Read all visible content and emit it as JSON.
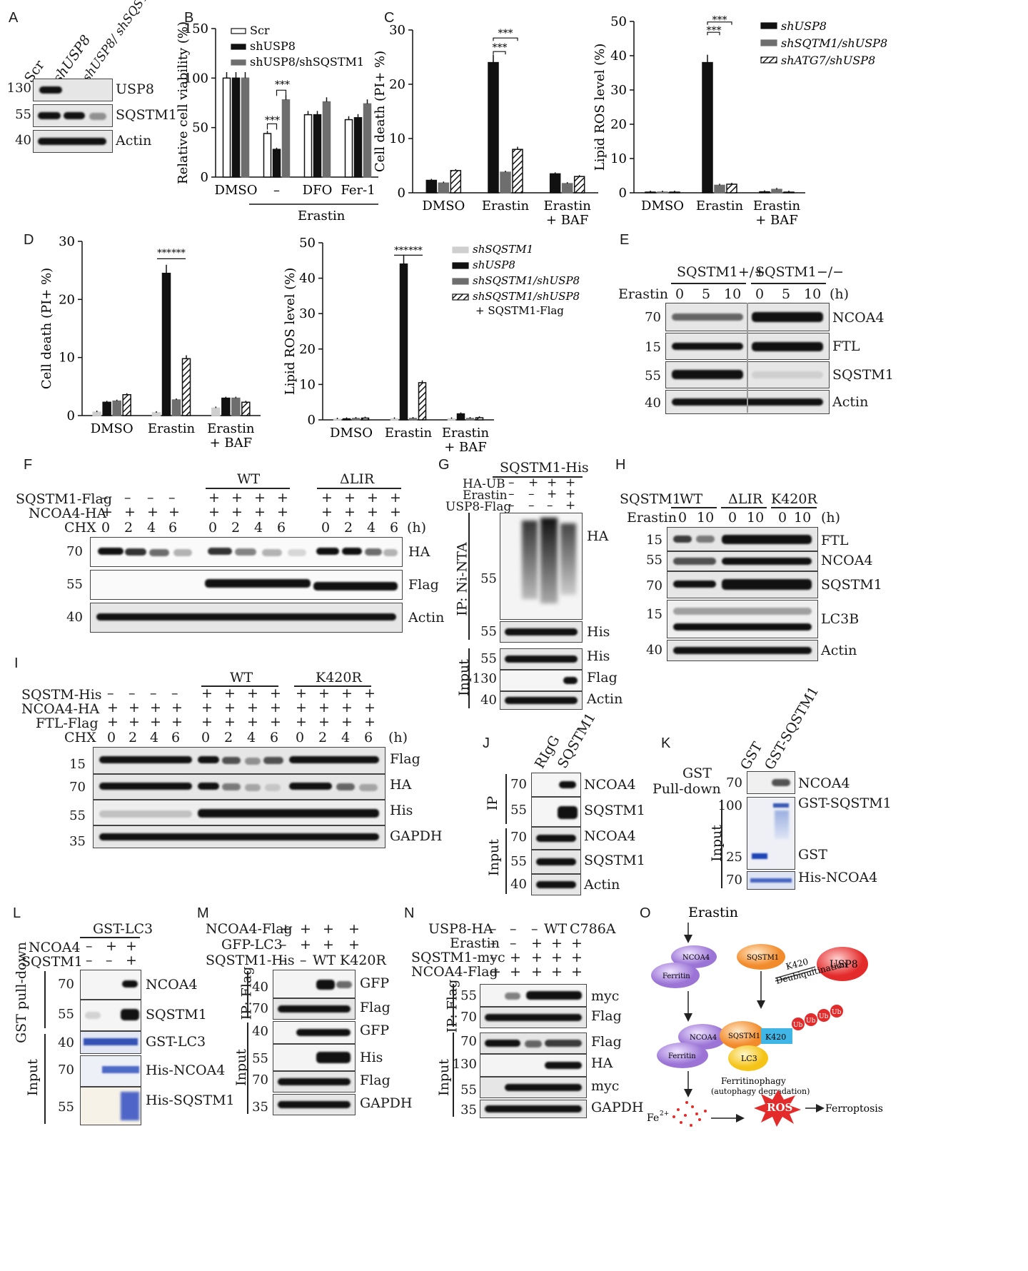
{
  "panels": {
    "A": {
      "letter": "A",
      "lanes": [
        "Scr",
        "shUSP8",
        "shUSP8/ shSQSTM1"
      ],
      "rows": [
        {
          "mw": "130",
          "name": "USP8"
        },
        {
          "mw": "55",
          "name": "SQSTM1"
        },
        {
          "mw": "40",
          "name": "Actin"
        }
      ]
    },
    "B": {
      "letter": "B"
    },
    "C": {
      "letter": "C"
    },
    "D": {
      "letter": "D"
    },
    "E": {
      "letter": "E",
      "group1": "SQSTM1+/+",
      "group2": "SQSTM1−/−",
      "treat": "Erastin",
      "times": [
        "0",
        "5",
        "10",
        "0",
        "5",
        "10"
      ],
      "unit": "(h)",
      "rows": [
        {
          "mw": "70",
          "name": "NCOA4"
        },
        {
          "mw": "15",
          "name": "FTL"
        },
        {
          "mw": "55",
          "name": "SQSTM1"
        },
        {
          "mw": "40",
          "name": "Actin"
        }
      ]
    },
    "F": {
      "letter": "F",
      "wt": "WT",
      "dlir": "ΔLIR",
      "r1": "SQSTM1-Flag",
      "r2": "NCOA4-HA",
      "r3": "CHX",
      "times": [
        "0",
        "2",
        "4",
        "6",
        "0",
        "2",
        "4",
        "6",
        "0",
        "2",
        "4",
        "6"
      ],
      "unit": "(h)",
      "rows": [
        {
          "mw": "70",
          "name": "HA"
        },
        {
          "mw": "55",
          "name": "Flag"
        },
        {
          "mw": "40",
          "name": "Actin"
        }
      ]
    },
    "G": {
      "letter": "G",
      "title": "SQSTM1-His",
      "r1": "HA-UB",
      "r2": "Erastin",
      "r3": "USP8-Flag",
      "ip": "IP: Ni-NTA",
      "input": "Input",
      "rows": [
        {
          "mw": "55",
          "name": "HA"
        },
        {
          "mw": "55",
          "name": "His"
        },
        {
          "mw": "55",
          "name": "His"
        },
        {
          "mw": "130",
          "name": "Flag"
        },
        {
          "mw": "40",
          "name": "Actin"
        }
      ]
    },
    "H": {
      "letter": "H",
      "sq": "SQSTM1",
      "wt": "WT",
      "dlir": "ΔLIR",
      "k": "K420R",
      "treat": "Erastin",
      "times": [
        "0",
        "10",
        "0",
        "10",
        "0",
        "10"
      ],
      "unit": "(h)",
      "rows": [
        {
          "mw": "15",
          "name": "FTL"
        },
        {
          "mw": "55",
          "name": "NCOA4"
        },
        {
          "mw": "70",
          "name": "SQSTM1"
        },
        {
          "mw": "15",
          "name": "LC3B"
        },
        {
          "mw": "40",
          "name": "Actin"
        }
      ]
    },
    "I": {
      "letter": "I",
      "wt": "WT",
      "k": "K420R",
      "r1": "SQSTM-His",
      "r2": "NCOA4-HA",
      "r3": "FTL-Flag",
      "r4": "CHX",
      "times": [
        "0",
        "2",
        "4",
        "6",
        "0",
        "2",
        "4",
        "6",
        "0",
        "2",
        "4",
        "6"
      ],
      "unit": "(h)",
      "rows": [
        {
          "mw": "15",
          "name": "Flag"
        },
        {
          "mw": "70",
          "name": "HA"
        },
        {
          "mw": "55",
          "name": "His"
        },
        {
          "mw": "35",
          "name": "GAPDH"
        }
      ]
    },
    "J": {
      "letter": "J",
      "lanes": [
        "RIgG",
        "SQSTM1"
      ],
      "ip": "IP",
      "input": "Input",
      "rows": [
        {
          "mw": "70",
          "name": "NCOA4"
        },
        {
          "mw": "55",
          "name": "SQSTM1"
        },
        {
          "mw": "70",
          "name": "NCOA4"
        },
        {
          "mw": "55",
          "name": "SQSTM1"
        },
        {
          "mw": "40",
          "name": "Actin"
        }
      ]
    },
    "K": {
      "letter": "K",
      "lanes": [
        "GST",
        "GST-SQSTM1"
      ],
      "gst": "GST",
      "pd": "Pull-down",
      "input": "Input",
      "rows": [
        {
          "mw": "70",
          "name": "NCOA4"
        },
        {
          "mw": "100",
          "name": "GST-SQSTM1"
        },
        {
          "mw": "25",
          "name": "GST"
        },
        {
          "mw": "70",
          "name": "His-NCOA4"
        }
      ]
    },
    "L": {
      "letter": "L",
      "title": "GST-LC3",
      "r1": "NCOA4",
      "r2": "SQSTM1",
      "gstpd": "GST pull-down",
      "input": "Input",
      "rows": [
        {
          "mw": "70",
          "name": "NCOA4"
        },
        {
          "mw": "55",
          "name": "SQSTM1"
        },
        {
          "mw": "40",
          "name": "GST-LC3"
        },
        {
          "mw": "70",
          "name": "His-NCOA4"
        },
        {
          "mw": "55",
          "name": "His-SQSTM1"
        }
      ]
    },
    "M": {
      "letter": "M",
      "r1": "NCOA4-Flag",
      "r2": "GFP-LC3",
      "r3": "SQSTM1-His",
      "wt": "WT",
      "k": "K420R",
      "ip": "IP: Flag",
      "input": "Input",
      "rows": [
        {
          "mw": "40",
          "name": "GFP"
        },
        {
          "mw": "70",
          "name": "Flag"
        },
        {
          "mw": "40",
          "name": "GFP"
        },
        {
          "mw": "55",
          "name": "His"
        },
        {
          "mw": "70",
          "name": "Flag"
        },
        {
          "mw": "35",
          "name": "GAPDH"
        }
      ]
    },
    "N": {
      "letter": "N",
      "r1": "USP8-HA",
      "r2": "Erastin",
      "r3": "SQSTM1-myc",
      "r4": "NCOA4-Flag",
      "wt": "WT",
      "c": "C786A",
      "ip": "IP: Flag",
      "input": "Input",
      "rows": [
        {
          "mw": "55",
          "name": "myc"
        },
        {
          "mw": "70",
          "name": "Flag"
        },
        {
          "mw": "70",
          "name": "Flag"
        },
        {
          "mw": "130",
          "name": "HA"
        },
        {
          "mw": "55",
          "name": "myc"
        },
        {
          "mw": "35",
          "name": "GAPDH"
        }
      ]
    },
    "O": {
      "letter": "O",
      "erastin": "Erastin",
      "ncoa4": "NCOA4",
      "ferritin": "Ferritin",
      "sqstm1": "SQSTM1",
      "usp8": "USP8",
      "k420": "K420",
      "deub": "Deubiquitination",
      "lc3": "LC3",
      "ub": "Ub",
      "fphagy": "Ferritinophagy",
      "autodeg": "(autophagy degradation)",
      "fe": "Fe",
      "fe_sup": "2+",
      "ros": "ROS",
      "ferroptosis": "Ferroptosis"
    }
  },
  "sig": "***",
  "chart_data": [
    {
      "type": "bar",
      "panel": "B",
      "ylabel": "Relative cell viability (%)",
      "ylim": [
        0,
        150
      ],
      "yticks": [
        0,
        50,
        100,
        150
      ],
      "categories": [
        "DMSO",
        "–",
        "DFO",
        "Fer-1"
      ],
      "group_label": "Erastin",
      "series": [
        {
          "name": "Scr",
          "values": [
            100,
            44,
            63,
            58
          ]
        },
        {
          "name": "shUSP8",
          "values": [
            100,
            28,
            63,
            60
          ]
        },
        {
          "name": "shUSP8/shSQSTM1",
          "values": [
            100,
            78,
            76,
            74
          ]
        }
      ]
    },
    {
      "type": "bar",
      "panel": "C1",
      "ylabel": "Cell death (PI+ %)",
      "ylim": [
        0,
        30
      ],
      "yticks": [
        0,
        10,
        20,
        30
      ],
      "categories": [
        "DMSO",
        "Erastin",
        "Erastin + BAF"
      ],
      "series": [
        {
          "name": "shUSP8",
          "values": [
            2.3,
            24,
            3.5
          ]
        },
        {
          "name": "shSQSTM1/shUSP8",
          "values": [
            1.8,
            3.8,
            1.7
          ]
        },
        {
          "name": "shATG7/shUSP8",
          "values": [
            4.1,
            8,
            3
          ]
        }
      ]
    },
    {
      "type": "bar",
      "panel": "C2",
      "ylabel": "Lipid ROS level (%)",
      "ylim": [
        0,
        50
      ],
      "yticks": [
        0,
        10,
        20,
        30,
        40,
        50
      ],
      "categories": [
        "DMSO",
        "Erastin",
        "Erastin + BAF"
      ],
      "series": [
        {
          "name": "shUSP8",
          "values": [
            0.2,
            38,
            0.3
          ]
        },
        {
          "name": "shSQTM1/shUSP8",
          "values": [
            0.2,
            2.2,
            1
          ]
        },
        {
          "name": "shATG7/shUSP8",
          "values": [
            0.2,
            2.5,
            0.2
          ]
        }
      ]
    },
    {
      "type": "bar",
      "panel": "D1",
      "ylabel": "Cell death (PI+ %)",
      "ylim": [
        0,
        30
      ],
      "yticks": [
        0,
        10,
        20,
        30
      ],
      "categories": [
        "DMSO",
        "Erastin",
        "Erastin + BAF"
      ],
      "series": [
        {
          "name": "shSQSTM1",
          "values": [
            0.6,
            0.5,
            1.3
          ]
        },
        {
          "name": "shUSP8",
          "values": [
            2.3,
            24.5,
            3
          ]
        },
        {
          "name": "shSQSTM1/shUSP8",
          "values": [
            2.5,
            2.7,
            3
          ]
        },
        {
          "name": "shSQSTM1/shUSP8 + SQSTM1-Flag",
          "values": [
            3.6,
            9.8,
            2.3
          ]
        }
      ]
    },
    {
      "type": "bar",
      "panel": "D2",
      "ylabel": "Lipid ROS level (%)",
      "ylim": [
        0,
        50
      ],
      "yticks": [
        0,
        10,
        20,
        30,
        40,
        50
      ],
      "categories": [
        "DMSO",
        "Erastin",
        "Erastin + BAF"
      ],
      "series": [
        {
          "name": "shSQSTM1",
          "values": [
            0.2,
            0.3,
            0.3
          ]
        },
        {
          "name": "shUSP8",
          "values": [
            0.3,
            44,
            1.7
          ]
        },
        {
          "name": "shSQSTM1/shUSP8",
          "values": [
            0.4,
            0.4,
            0.4
          ]
        },
        {
          "name": "shSQSTM1/shUSP8 + SQSTM1-Flag",
          "values": [
            0.5,
            10.5,
            0.6
          ]
        }
      ]
    }
  ]
}
